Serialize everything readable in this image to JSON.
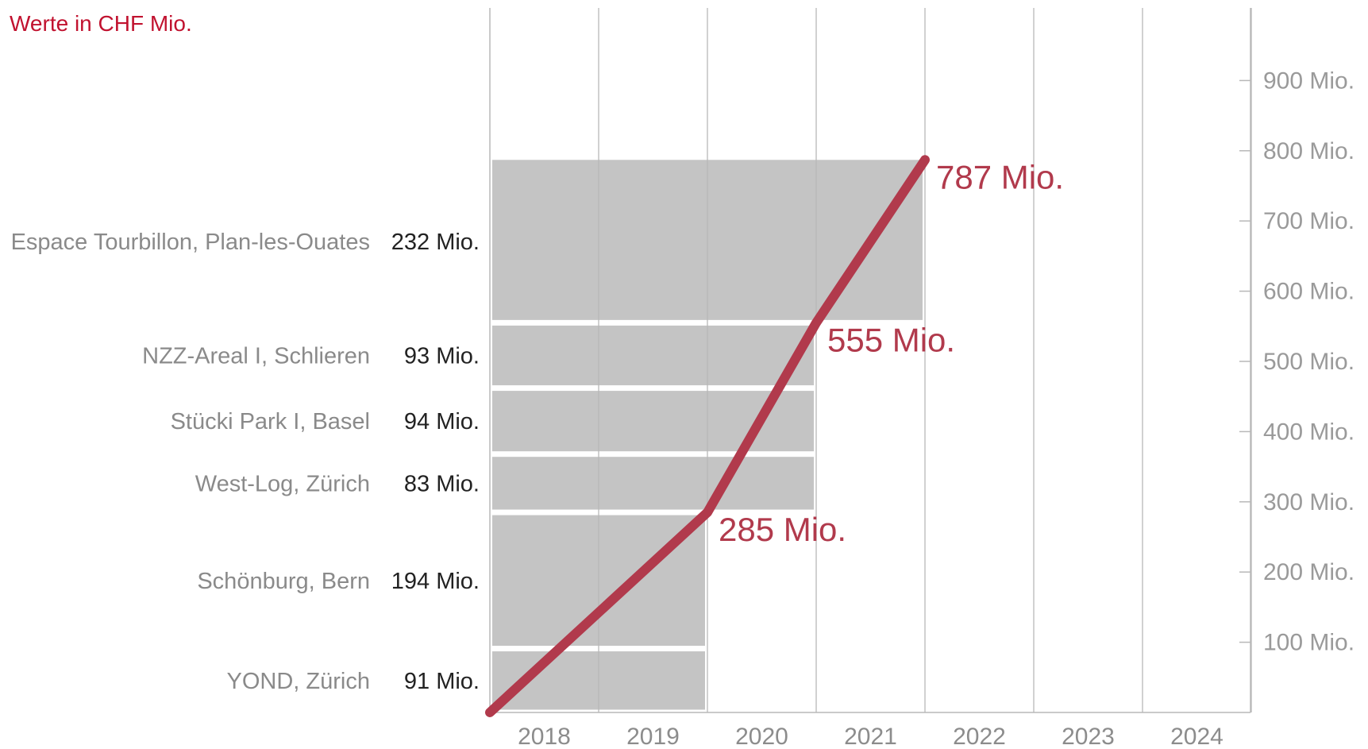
{
  "header": {
    "unit_note": "Werte in CHF Mio."
  },
  "chart_data": {
    "type": "bar",
    "x_categories": [
      "2018",
      "2019",
      "2020",
      "2021",
      "2022",
      "2023",
      "2024"
    ],
    "y_ticks": [
      "100 Mio.",
      "200 Mio.",
      "300 Mio.",
      "400 Mio.",
      "500 Mio.",
      "600 Mio.",
      "700 Mio.",
      "800 Mio.",
      "900 Mio."
    ],
    "ylim": [
      0,
      1000
    ],
    "bars": [
      {
        "name": "YOND, Zürich",
        "value": 91,
        "value_label": "91 Mio.",
        "end_year": 2019.5
      },
      {
        "name": "Schönburg, Bern",
        "value": 194,
        "value_label": "194 Mio.",
        "end_year": 2019.5
      },
      {
        "name": "West-Log, Zürich",
        "value": 83,
        "value_label": "83 Mio.",
        "end_year": 2020.5
      },
      {
        "name": "Stücki Park I, Basel",
        "value": 94,
        "value_label": "94 Mio.",
        "end_year": 2020.5
      },
      {
        "name": "NZZ-Areal I, Schlieren",
        "value": 93,
        "value_label": "93 Mio.",
        "end_year": 2020.5
      },
      {
        "name": "Espace Tourbillon, Plan-les-Ouates",
        "value": 232,
        "value_label": "232 Mio.",
        "end_year": 2021.5
      }
    ],
    "cumulative_line": {
      "points": [
        {
          "x": 2017.5,
          "y": 0
        },
        {
          "x": 2019.5,
          "y": 285,
          "label": "285 Mio."
        },
        {
          "x": 2020.5,
          "y": 555,
          "label": "555 Mio."
        },
        {
          "x": 2021.5,
          "y": 787,
          "label": "787 Mio."
        }
      ]
    },
    "colors": {
      "bar": "#c4c4c4",
      "line": "#b13a4c",
      "grid": "#b8b8b8",
      "category_text": "#8a8a8a",
      "value_text": "#222222",
      "tick_text": "#9a9a9a"
    },
    "grid": true
  }
}
